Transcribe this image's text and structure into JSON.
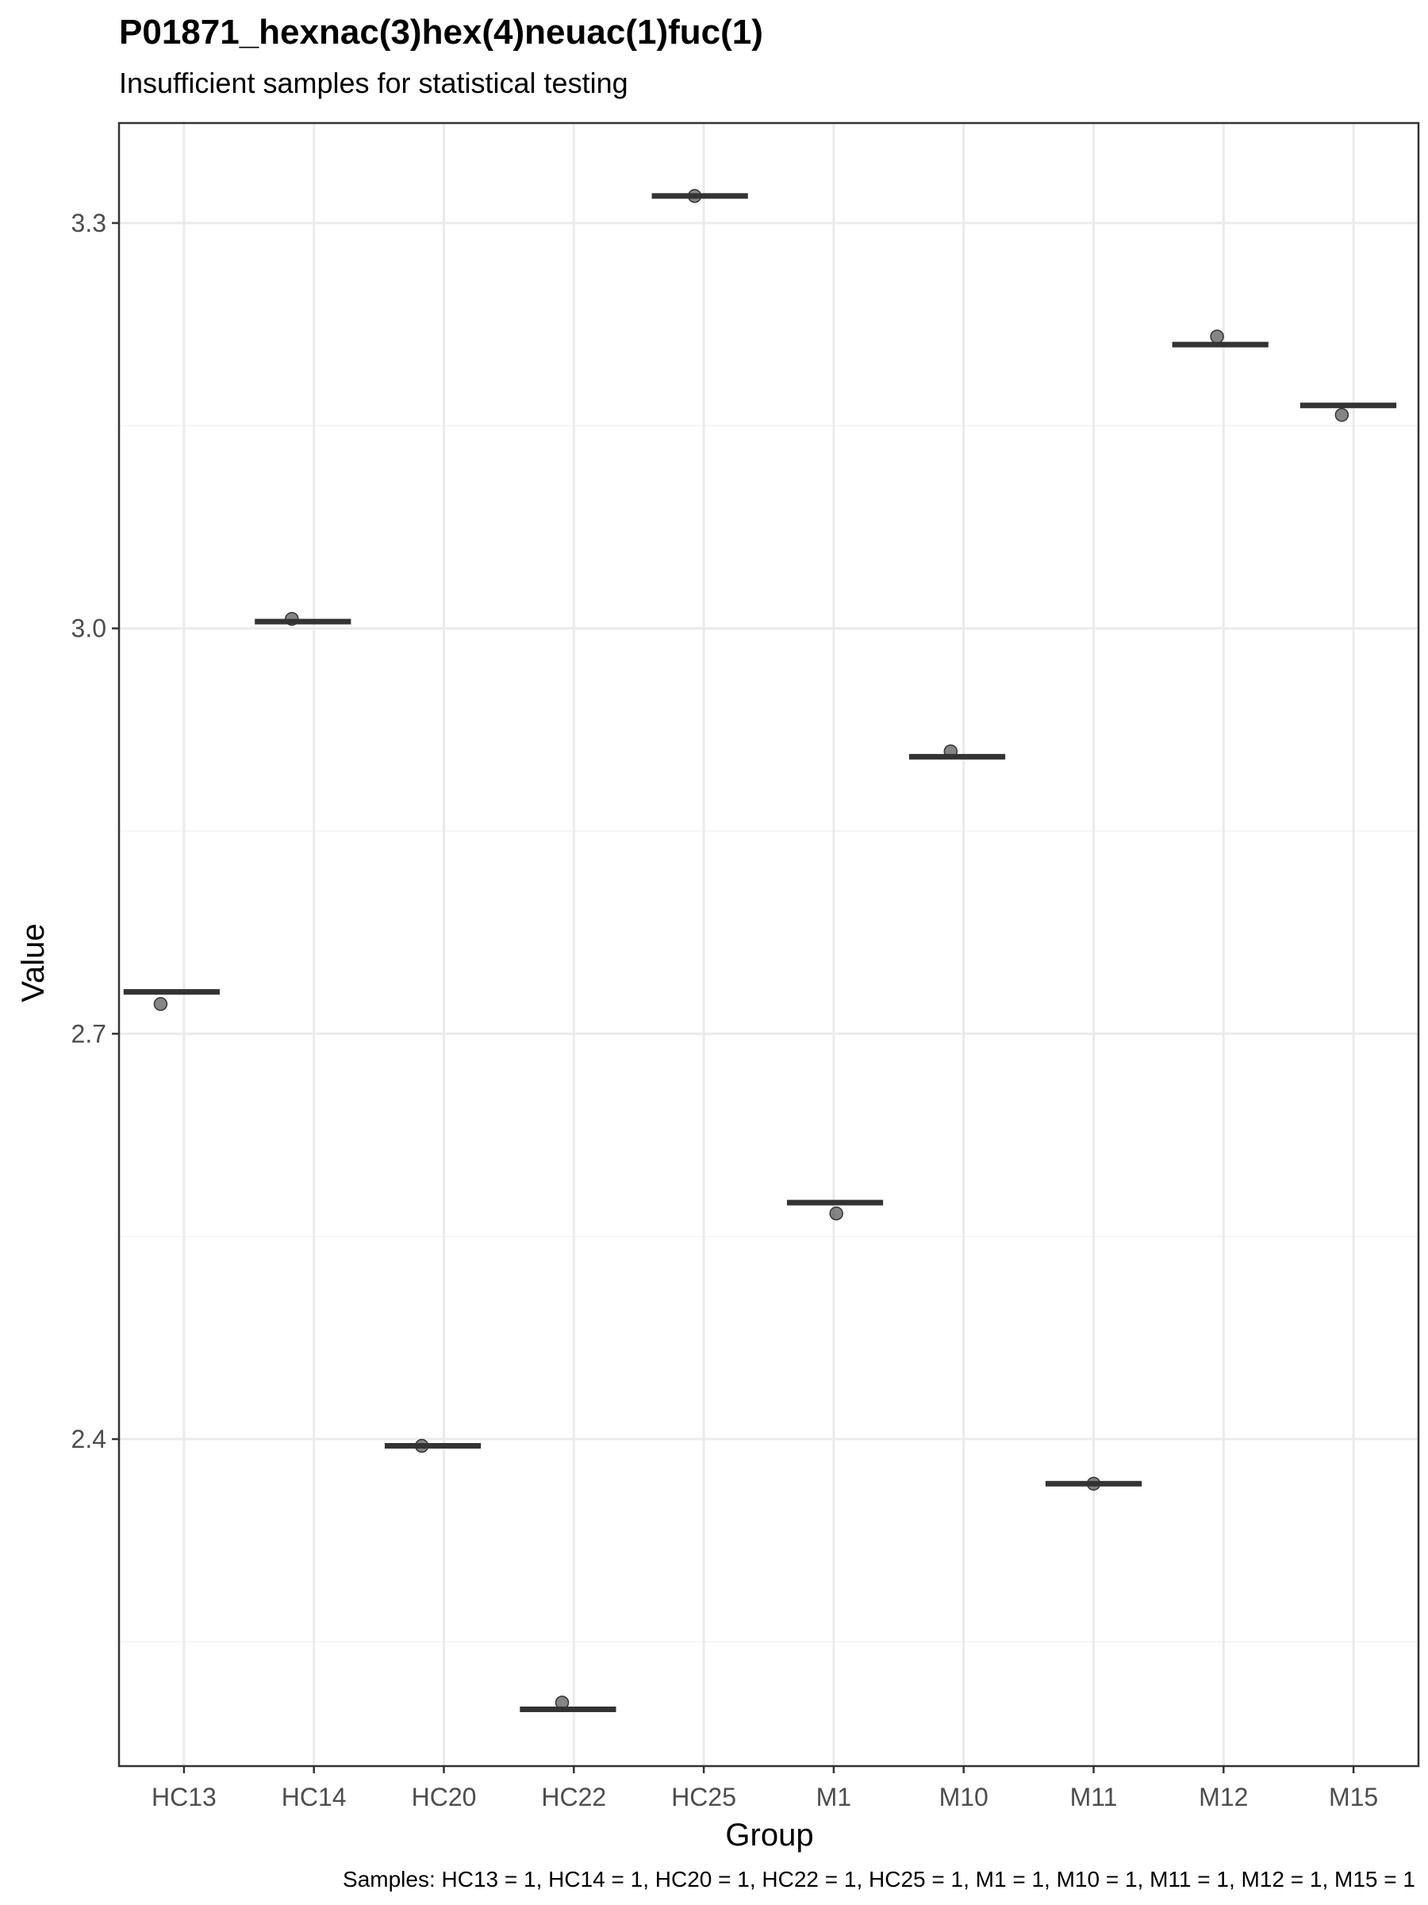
{
  "chart_data": {
    "type": "scatter",
    "title": "P01871_hexnac(3)hex(4)neuac(1)fuc(1)",
    "subtitle": "Insufficient samples for statistical testing",
    "xlabel": "Group",
    "ylabel": "Value",
    "categories": [
      "HC13",
      "HC14",
      "HC20",
      "HC22",
      "HC25",
      "M1",
      "M10",
      "M11",
      "M12",
      "M15"
    ],
    "medians": [
      2.731,
      3.005,
      2.395,
      2.2,
      3.32,
      2.575,
      2.905,
      2.367,
      3.21,
      3.165
    ],
    "points": [
      {
        "group": "HC13",
        "y": 2.722
      },
      {
        "group": "HC14",
        "y": 3.007
      },
      {
        "group": "HC20",
        "y": 2.395
      },
      {
        "group": "HC22",
        "y": 2.205
      },
      {
        "group": "HC25",
        "y": 3.32
      },
      {
        "group": "M1",
        "y": 2.567
      },
      {
        "group": "M10",
        "y": 2.909
      },
      {
        "group": "M11",
        "y": 2.367
      },
      {
        "group": "M12",
        "y": 3.216
      },
      {
        "group": "M15",
        "y": 3.158
      }
    ],
    "yticks": [
      2.4,
      2.7,
      3.0,
      3.3
    ],
    "ytick_labels": [
      "2.4",
      "2.7",
      "3.0",
      "3.3"
    ],
    "ylim": [
      2.158,
      3.374
    ],
    "grid": true,
    "legend": "none",
    "caption": "Samples: HC13 = 1, HC14 = 1, HC20 = 1, HC22 = 1, HC25 = 1, M1 = 1, M10 = 1, M11 = 1, M12 = 1, M15 = 1",
    "colors": {
      "median_bar": "#333333",
      "point": "#333333",
      "grid": "#ebebeb",
      "panel_border": "#333333"
    }
  }
}
